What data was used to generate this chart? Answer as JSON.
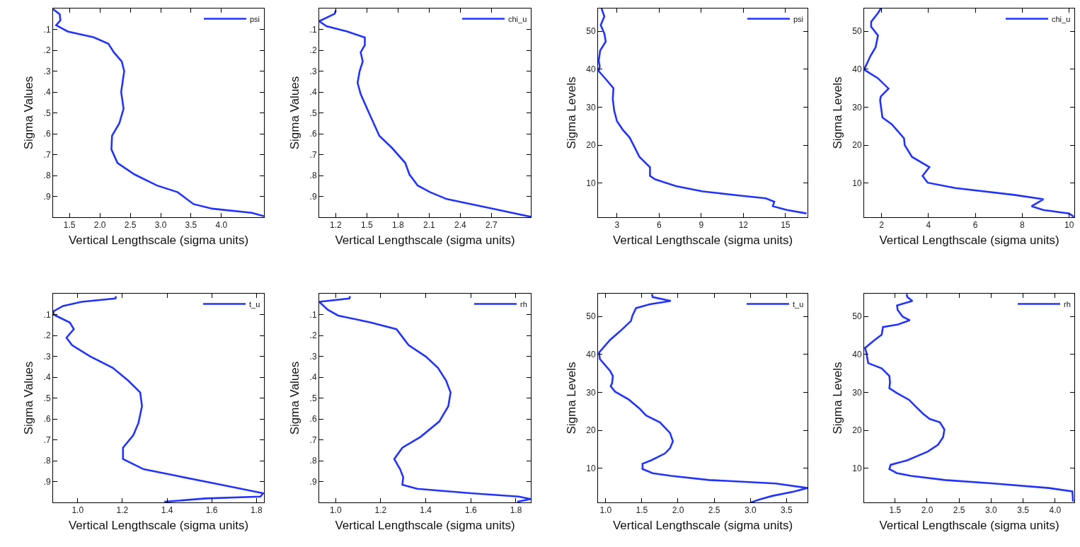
{
  "chart_data": [
    {
      "type": "line",
      "xlabel": "Vertical Lengthscale (sigma units)",
      "ylabel": "Sigma Values",
      "legend": "top right",
      "xlim": [
        1.23,
        4.7
      ],
      "xticks": [
        1.5,
        {
          "value": 2,
          "label": "2.0"
        },
        2.5,
        {
          "value": 3,
          "label": "3.0"
        },
        3.5,
        {
          "value": 4,
          "label": "4.0"
        }
      ],
      "ylim": [
        1,
        0
      ],
      "yticks": [
        {
          "value": 0.1,
          "label": ".1"
        },
        {
          "value": 0.2,
          "label": ".2"
        },
        {
          "value": 0.3,
          "label": ".3"
        },
        {
          "value": 0.4,
          "label": ".4"
        },
        {
          "value": 0.5,
          "label": ".5"
        },
        {
          "value": 0.6,
          "label": ".6"
        },
        {
          "value": 0.7,
          "label": ".7"
        },
        {
          "value": 0.8,
          "label": ".8"
        },
        {
          "value": 0.9,
          "label": ".9"
        }
      ],
      "series": [
        {
          "name": "psi",
          "color": "#2233ff",
          "x": [
            1.23,
            1.34,
            1.35,
            1.28,
            1.47,
            1.9,
            2.14,
            2.23,
            2.36,
            2.4,
            2.35,
            2.39,
            2.32,
            2.2,
            2.19,
            2.29,
            2.57,
            2.94,
            3.28,
            3.54,
            3.85,
            4.5,
            4.7
          ],
          "values": [
            0.003,
            0.028,
            0.057,
            0.08,
            0.11,
            0.138,
            0.169,
            0.21,
            0.254,
            0.3,
            0.4,
            0.48,
            0.55,
            0.61,
            0.675,
            0.74,
            0.795,
            0.848,
            0.88,
            0.937,
            0.959,
            0.979,
            0.995
          ]
        }
      ]
    },
    {
      "type": "line",
      "xlabel": "Vertical Lengthscale (sigma units)",
      "ylabel": "Sigma Values",
      "legend": "top right",
      "xlim": [
        1.04,
        3.08
      ],
      "xticks": [
        1.2,
        1.5,
        1.8,
        2.1,
        2.4,
        2.7
      ],
      "ylim": [
        1,
        0
      ],
      "yticks": [
        {
          "value": 0.1,
          "label": ".1"
        },
        {
          "value": 0.2,
          "label": ".2"
        },
        {
          "value": 0.3,
          "label": ".3"
        },
        {
          "value": 0.4,
          "label": ".4"
        },
        {
          "value": 0.5,
          "label": ".5"
        },
        {
          "value": 0.6,
          "label": ".6"
        },
        {
          "value": 0.7,
          "label": ".7"
        },
        {
          "value": 0.8,
          "label": ".8"
        },
        {
          "value": 0.9,
          "label": ".9"
        }
      ],
      "series": [
        {
          "name": "chi_u",
          "color": "#2233ff",
          "x": [
            1.2,
            1.19,
            1.04,
            1.11,
            1.31,
            1.48,
            1.48,
            1.44,
            1.46,
            1.43,
            1.41,
            1.44,
            1.52,
            1.62,
            1.74,
            1.87,
            1.91,
            1.99,
            2.11,
            2.27,
            2.74,
            3.08
          ],
          "values": [
            0.008,
            0.025,
            0.061,
            0.085,
            0.11,
            0.139,
            0.175,
            0.21,
            0.254,
            0.3,
            0.356,
            0.41,
            0.5,
            0.61,
            0.667,
            0.74,
            0.795,
            0.848,
            0.88,
            0.913,
            0.962,
            0.998
          ]
        }
      ]
    },
    {
      "type": "line",
      "xlabel": "Vertical Lengthscale (sigma units)",
      "ylabel": "Sigma Levels",
      "legend": "top right",
      "xlim": [
        1.65,
        16.57
      ],
      "xticks": [
        3,
        6,
        9,
        12,
        15
      ],
      "ylim": [
        1,
        56
      ],
      "yticks": [
        10,
        20,
        30,
        40,
        50
      ],
      "series": [
        {
          "name": "psi",
          "color": "#2233ff",
          "x": [
            1.9,
            2.1,
            1.84,
            2.1,
            2.2,
            1.8,
            1.7,
            1.77,
            1.7,
            2.2,
            2.75,
            2.7,
            2.8,
            3.0,
            3.4,
            3.9,
            4.3,
            4.6,
            5.35,
            5.35,
            5.7,
            7.2,
            9.1,
            11.8,
            13.6,
            14.2,
            14.1,
            15.1,
            16.5
          ],
          "values": [
            56,
            53.9,
            51.6,
            49.4,
            47.3,
            44.9,
            42.2,
            40.8,
            39.5,
            37.4,
            35,
            32.2,
            29.1,
            26.3,
            24.1,
            22,
            19.1,
            16.9,
            14.2,
            11.9,
            11,
            9.2,
            7.8,
            6.7,
            6,
            5.1,
            3.9,
            2.9,
            2
          ]
        }
      ]
    },
    {
      "type": "line",
      "xlabel": "Vertical Lengthscale (sigma units)",
      "ylabel": "Sigma Levels",
      "legend": "top right",
      "xlim": [
        1.26,
        10.22
      ],
      "xticks": [
        2,
        4,
        6,
        8,
        10
      ],
      "ylim": [
        1,
        56
      ],
      "yticks": [
        10,
        20,
        30,
        40,
        50
      ],
      "series": [
        {
          "name": "chi_u",
          "color": "#2233ff",
          "x": [
            1.97,
            1.85,
            1.56,
            1.56,
            1.85,
            1.75,
            1.53,
            1.26,
            1.85,
            2.3,
            1.97,
            1.94,
            2.04,
            2.44,
            2.96,
            2.99,
            3.3,
            4.04,
            3.75,
            3.97,
            5.15,
            7.65,
            8.9,
            8.4,
            8.9,
            10.0,
            10.2
          ],
          "values": [
            56,
            54.8,
            52.5,
            51.2,
            48.9,
            45.8,
            43.5,
            39.9,
            37.6,
            34.9,
            32.8,
            31.8,
            27.3,
            25.5,
            21.8,
            20,
            16.9,
            14.2,
            11.9,
            10.1,
            8.7,
            6.9,
            5.75,
            3.9,
            2.9,
            2,
            1.1
          ]
        }
      ]
    },
    {
      "type": "line",
      "xlabel": "Vertical Lengthscale (sigma units)",
      "ylabel": "Sigma Values",
      "legend": "top right",
      "xlim": [
        0.89,
        1.834
      ],
      "xticks": [
        {
          "value": 1,
          "label": "1.0"
        },
        1.2,
        1.4,
        1.6,
        1.8
      ],
      "ylim": [
        1,
        0
      ],
      "yticks": [
        {
          "value": 0.1,
          "label": ".1"
        },
        {
          "value": 0.2,
          "label": ".2"
        },
        {
          "value": 0.3,
          "label": ".3"
        },
        {
          "value": 0.4,
          "label": ".4"
        },
        {
          "value": 0.5,
          "label": ".5"
        },
        {
          "value": 0.6,
          "label": ".6"
        },
        {
          "value": 0.7,
          "label": ".7"
        },
        {
          "value": 0.8,
          "label": ".8"
        },
        {
          "value": 0.9,
          "label": ".9"
        }
      ],
      "series": [
        {
          "name": "t_u",
          "color": "#2233ff",
          "x": [
            1.172,
            1.169,
            1.018,
            0.934,
            0.892,
            0.892,
            0.965,
            0.983,
            0.95,
            0.975,
            1.057,
            1.157,
            1.226,
            1.28,
            1.288,
            1.272,
            1.249,
            1.203,
            1.203,
            1.295,
            1.449,
            1.626,
            1.83,
            1.818,
            1.572,
            1.388
          ],
          "values": [
            0.012,
            0.023,
            0.039,
            0.059,
            0.084,
            0.1,
            0.138,
            0.17,
            0.211,
            0.247,
            0.301,
            0.355,
            0.416,
            0.473,
            0.539,
            0.62,
            0.678,
            0.738,
            0.792,
            0.841,
            0.874,
            0.912,
            0.956,
            0.972,
            0.981,
            0.997
          ]
        }
      ]
    },
    {
      "type": "line",
      "xlabel": "Vertical Lengthscale (sigma units)",
      "ylabel": "Sigma Values",
      "legend": "top right",
      "xlim": [
        0.927,
        1.866
      ],
      "xticks": [
        {
          "value": 1,
          "label": "1.0"
        },
        1.2,
        1.4,
        1.6,
        1.8
      ],
      "ylim": [
        1,
        0
      ],
      "yticks": [
        {
          "value": 0.1,
          "label": ".1"
        },
        {
          "value": 0.2,
          "label": ".2"
        },
        {
          "value": 0.3,
          "label": ".3"
        },
        {
          "value": 0.4,
          "label": ".4"
        },
        {
          "value": 0.5,
          "label": ".5"
        },
        {
          "value": 0.6,
          "label": ".6"
        },
        {
          "value": 0.7,
          "label": ".7"
        },
        {
          "value": 0.8,
          "label": ".8"
        },
        {
          "value": 0.9,
          "label": ".9"
        }
      ],
      "series": [
        {
          "name": "rh",
          "color": "#2233ff",
          "x": [
            1.064,
            1.061,
            0.927,
            0.965,
            1.011,
            1.156,
            1.27,
            1.324,
            1.4,
            1.454,
            1.49,
            1.51,
            1.5,
            1.46,
            1.377,
            1.296,
            1.26,
            1.286,
            1.3,
            1.296,
            1.362,
            1.6,
            1.812,
            1.866,
            1.806
          ],
          "values": [
            0.012,
            0.023,
            0.039,
            0.077,
            0.105,
            0.138,
            0.17,
            0.247,
            0.301,
            0.355,
            0.416,
            0.473,
            0.539,
            0.612,
            0.686,
            0.738,
            0.792,
            0.841,
            0.879,
            0.915,
            0.935,
            0.956,
            0.972,
            0.984,
            0.997
          ]
        }
      ]
    },
    {
      "type": "line",
      "xlabel": "Vertical Lengthscale (sigma units)",
      "ylabel": "Sigma Levels",
      "legend": "top right",
      "xlim": [
        0.895,
        3.79
      ],
      "xticks": [
        {
          "value": 1,
          "label": "1.0"
        },
        1.5,
        {
          "value": 2,
          "label": "2.0"
        },
        2.5,
        {
          "value": 3,
          "label": "3.0"
        },
        3.5
      ],
      "ylim": [
        1,
        56
      ],
      "yticks": [
        10,
        20,
        30,
        40,
        50
      ],
      "series": [
        {
          "name": "t_u",
          "color": "#2233ff",
          "x": [
            1.64,
            1.65,
            1.9,
            1.61,
            1.42,
            1.37,
            1.35,
            1.2,
            1.06,
            0.91,
            0.92,
            1.06,
            1.1,
            1.09,
            1.07,
            1.13,
            1.32,
            1.47,
            1.56,
            1.75,
            1.89,
            1.93,
            1.89,
            1.82,
            1.63,
            1.51,
            1.51,
            1.65,
            1.91,
            2.43,
            3.35,
            3.79,
            3.61,
            3.3,
            3.13,
            3.01
          ],
          "values": [
            55.9,
            55.1,
            54.1,
            53.2,
            52.2,
            50.2,
            48.8,
            46.1,
            43.8,
            40.5,
            38.8,
            35.7,
            34.3,
            32.5,
            31.6,
            30.2,
            28.1,
            25.7,
            23.9,
            22.1,
            19.3,
            17.1,
            15.3,
            13.9,
            12.1,
            11.2,
            9.8,
            8.7,
            8,
            6.9,
            6,
            4.8,
            3.9,
            2.7,
            1.8,
            1
          ]
        }
      ]
    },
    {
      "type": "line",
      "xlabel": "Vertical Lengthscale (sigma units)",
      "ylabel": "Sigma Levels",
      "legend": "top right",
      "xlim": [
        1.016,
        4.3
      ],
      "xticks": [
        1.5,
        {
          "value": 2,
          "label": "2.0"
        },
        2.5,
        {
          "value": 3,
          "label": "3.0"
        },
        3.5,
        {
          "value": 4,
          "label": "4.0"
        }
      ],
      "ylim": [
        1,
        56
      ],
      "yticks": [
        10,
        20,
        30,
        40,
        50
      ],
      "series": [
        {
          "name": "rh",
          "color": "#2233ff",
          "x": [
            1.68,
            1.69,
            1.77,
            1.53,
            1.54,
            1.62,
            1.73,
            1.55,
            1.31,
            1.29,
            1.18,
            1.03,
            1.05,
            1.08,
            1.29,
            1.41,
            1.42,
            1.41,
            1.53,
            1.72,
            1.8,
            1.94,
            2.04,
            2.2,
            2.27,
            2.25,
            2.17,
            2.01,
            1.69,
            1.43,
            1.41,
            1.53,
            1.75,
            2.28,
            3.04,
            3.9,
            4.27,
            4.28
          ],
          "values": [
            55.9,
            55.1,
            54.1,
            52.9,
            51.7,
            49.9,
            49,
            47.9,
            47.2,
            45.2,
            43.8,
            41.7,
            40.5,
            37.7,
            36.3,
            34.3,
            32.7,
            31.1,
            29.8,
            28,
            26.6,
            24.3,
            23,
            22.1,
            20.2,
            18.2,
            16.2,
            14.4,
            12.1,
            10.9,
            9.8,
            8.7,
            8,
            6.9,
            6,
            4.8,
            3.9,
            1.2
          ]
        }
      ]
    }
  ]
}
